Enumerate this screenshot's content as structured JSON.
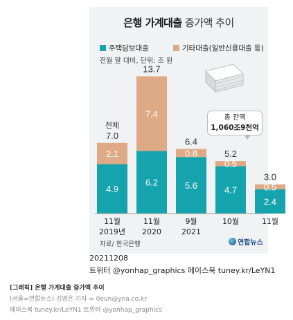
{
  "title_bold": "은행 가계대출",
  "title_regular": "증가액 추이",
  "note": "전월 말 대비, 단위: 조 원",
  "callout": {
    "line1": "총 잔액",
    "line2": "1,060조9천억"
  },
  "source": "자료/ 한국은행",
  "logo_text": "연합뉴스",
  "date_line": "20211208",
  "social_line": "트위터 @yonhap_graphics 페이스북 tuney.kr/LeYN1",
  "footer": {
    "line1": "[그래픽] 은행 가계대출 증가액 추이",
    "line2": "(서울=연합뉴스) 김영은 기자 = 0eun@yna.co.kr",
    "line3": "페이스북 tuney.kr/LeYN1 트위터 @yonhap_graphics"
  },
  "colors": {
    "mortgage": "#15a3ad",
    "other": "#deaa86",
    "card": "#f1f2f3"
  },
  "chart_data": {
    "type": "bar",
    "stacked": true,
    "categories": [
      "11월 2019년",
      "11월 2020",
      "9월 2021",
      "10월",
      "11월"
    ],
    "category_lines": [
      [
        "11월",
        "2019년"
      ],
      [
        "11월",
        "2020"
      ],
      [
        "9월",
        "2021"
      ],
      [
        "10월",
        ""
      ],
      [
        "11월",
        ""
      ]
    ],
    "series": [
      {
        "name": "주택담보대출",
        "values": [
          4.9,
          6.2,
          5.6,
          4.7,
          2.4
        ]
      },
      {
        "name": "기타대출(일반신용대출 등)",
        "values": [
          2.1,
          7.4,
          0.8,
          0.5,
          0.5
        ]
      }
    ],
    "totals": [
      "7.0",
      "13.7",
      "6.4",
      "5.2",
      "3.0"
    ],
    "total_prefix": [
      "전체",
      "",
      "",
      "",
      ""
    ],
    "ylabel": "조 원",
    "ylim": [
      0,
      14
    ]
  }
}
